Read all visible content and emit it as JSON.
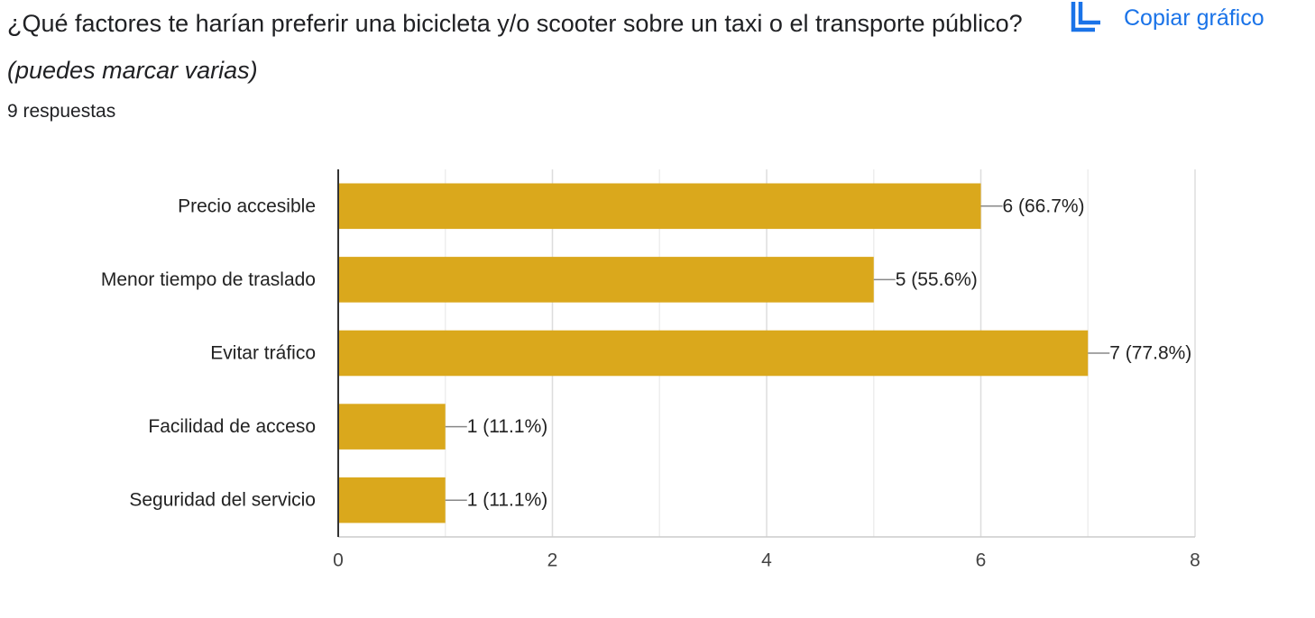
{
  "question": {
    "title": "¿Qué factores te harían preferir una bicicleta y/o scooter sobre un taxi o el transporte público?",
    "hint": "(puedes marcar varias)",
    "responses": "9 respuestas"
  },
  "toolbar": {
    "copy_label": "Copiar gráfico",
    "copy_icon": "copy-icon"
  },
  "colors": {
    "bar": "#daa81c",
    "accent": "#1a73e8"
  },
  "chart_data": {
    "type": "bar",
    "orientation": "horizontal",
    "categories": [
      "Precio accesible",
      "Menor tiempo de traslado",
      "Evitar tráfico",
      "Facilidad de acceso",
      "Seguridad del servicio"
    ],
    "values": [
      6,
      5,
      7,
      1,
      1
    ],
    "data_labels": [
      "6 (66.7%)",
      "5 (55.6%)",
      "7 (77.8%)",
      "1 (11.1%)",
      "1 (11.1%)"
    ],
    "xlim": [
      0,
      8
    ],
    "xticks": [
      0,
      2,
      4,
      6,
      8
    ],
    "grid": true
  }
}
